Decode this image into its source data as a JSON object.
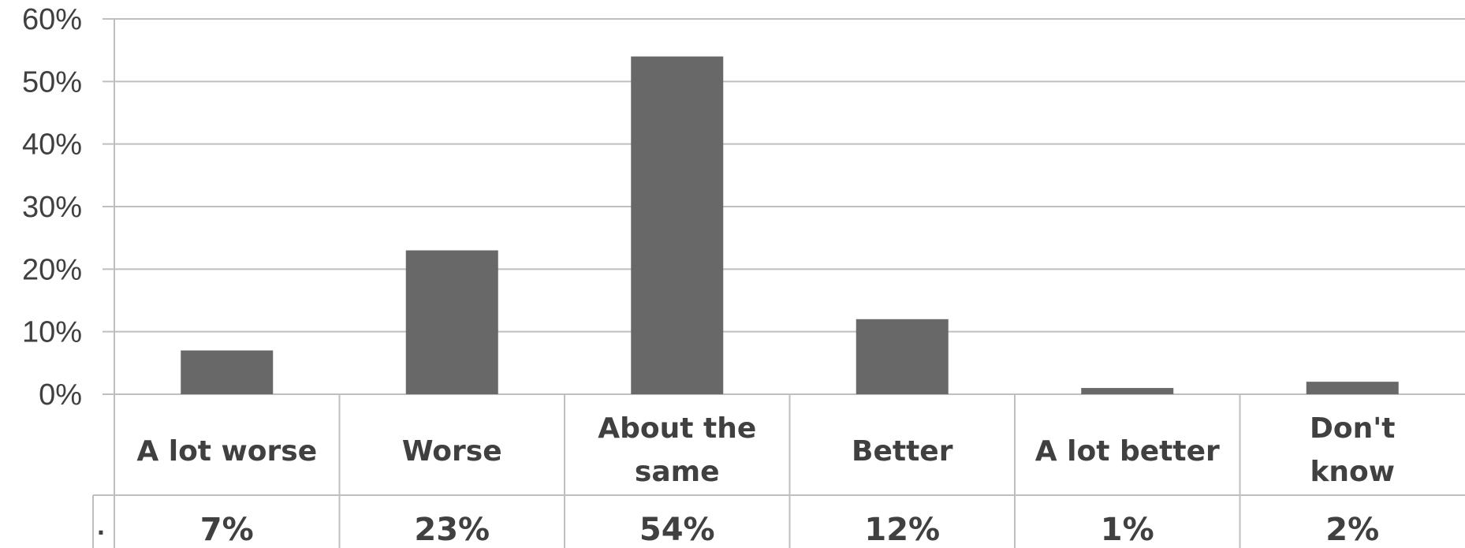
{
  "chart_data": {
    "type": "bar",
    "title": "",
    "xlabel": "",
    "ylabel": "",
    "categories": [
      "A lot worse",
      "Worse",
      "About the same",
      "Better",
      "A lot better",
      "Don't know"
    ],
    "category_lines": [
      [
        "A lot worse"
      ],
      [
        "Worse"
      ],
      [
        "About the",
        "same"
      ],
      [
        "Better"
      ],
      [
        "A lot better"
      ],
      [
        "Don't",
        "know"
      ]
    ],
    "values": [
      7,
      23,
      54,
      12,
      1,
      2
    ],
    "value_labels": [
      "7%",
      "23%",
      "54%",
      "12%",
      "1%",
      "2%"
    ],
    "ylim": [
      0,
      60
    ],
    "yticks": [
      0,
      10,
      20,
      30,
      40,
      50,
      60
    ],
    "ytick_labels": [
      "0%",
      "10%",
      "20%",
      "30%",
      "40%",
      "50%",
      "60%"
    ],
    "grid": true,
    "data_table": true,
    "series_legend_key": "·",
    "colors": {
      "bar": "#686868",
      "grid": "#bfbfbf",
      "text": "#404040",
      "table_border": "#bfbfbf"
    }
  }
}
